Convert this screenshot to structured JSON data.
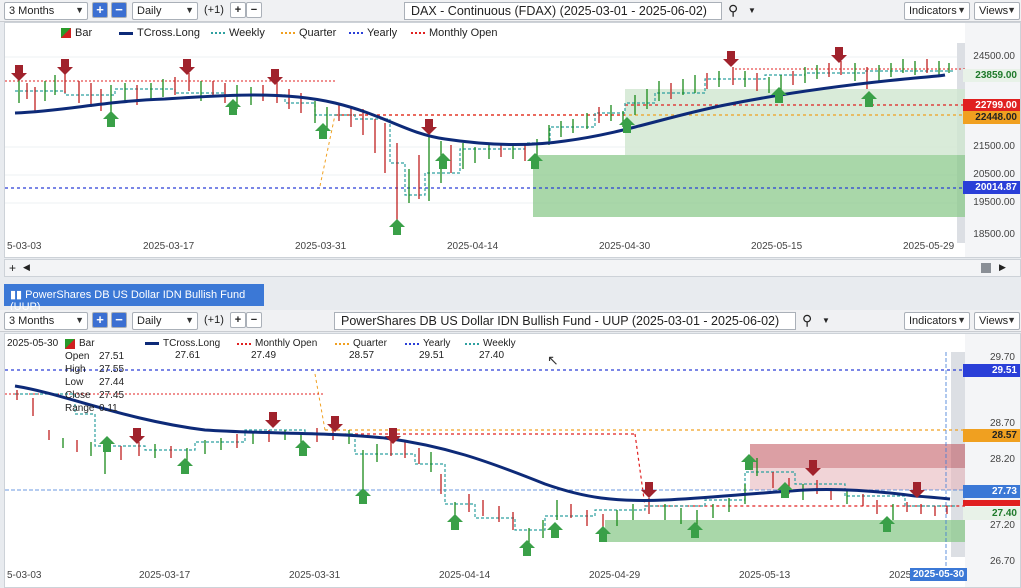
{
  "top": {
    "range": "3 Months",
    "interval": "Daily",
    "offset": "(+1)",
    "title": "DAX - Continuous (FDAX) (2025-03-01 - 2025-06-02)",
    "indicators": "Indicators",
    "views": "Views",
    "legend": [
      "Bar",
      "TCross.Long",
      "Weekly",
      "Quarter",
      "Yearly",
      "Monthly Open"
    ],
    "y_ticks": [
      "24500.00",
      "21500.00",
      "20500.00",
      "19500.00",
      "18500.00"
    ],
    "price_tags": [
      {
        "value": "23859.00",
        "color": "#1e7a2a"
      },
      {
        "value": "22799.00",
        "color": "#e02020"
      },
      {
        "value": "22448.00",
        "color": "#f0a020"
      },
      {
        "value": "20014.87",
        "color": "#2a3fd8"
      }
    ],
    "x_ticks": [
      "5-03-03",
      "2025-03-17",
      "2025-03-31",
      "2025-04-14",
      "2025-04-30",
      "2025-05-15",
      "2025-05-29"
    ]
  },
  "bottom": {
    "header": "PowerShares DB US Dollar IDN Bullish Fund (UUP)",
    "range": "3 Months",
    "interval": "Daily",
    "offset": "(+1)",
    "title": "PowerShares DB US Dollar IDN Bullish Fund - UUP (2025-03-01 - 2025-06-02)",
    "indicators": "Indicators",
    "views": "Views",
    "date_label": "2025-05-30",
    "legend": [
      {
        "name": "Bar",
        "value": ""
      },
      {
        "name": "TCross.Long",
        "value": "27.61"
      },
      {
        "name": "Monthly Open",
        "value": "27.49"
      },
      {
        "name": "Quarter",
        "value": "28.57"
      },
      {
        "name": "Yearly",
        "value": "29.51"
      },
      {
        "name": "Weekly",
        "value": "27.40"
      }
    ],
    "ohlc": [
      {
        "k": "Open",
        "v": "27.51"
      },
      {
        "k": "High",
        "v": "27.55"
      },
      {
        "k": "Low",
        "v": "27.44"
      },
      {
        "k": "Close",
        "v": "27.45"
      },
      {
        "k": "Range",
        "v": "0.11"
      }
    ],
    "y_ticks": [
      "29.70",
      "28.70",
      "28.20",
      "27.20",
      "26.70"
    ],
    "price_tags": [
      {
        "value": "29.51",
        "color": "#2a3fd8"
      },
      {
        "value": "28.57",
        "color": "#f0a020"
      },
      {
        "value": "27.73",
        "color": "#3b78d6"
      },
      {
        "value": "27.40",
        "color": "#1e7a2a"
      }
    ],
    "x_ticks": [
      "5-03-03",
      "2025-03-17",
      "2025-03-31",
      "2025-04-14",
      "2025-04-29",
      "2025-05-13",
      "2025"
    ],
    "cursor_date": "2025-05-30"
  }
}
